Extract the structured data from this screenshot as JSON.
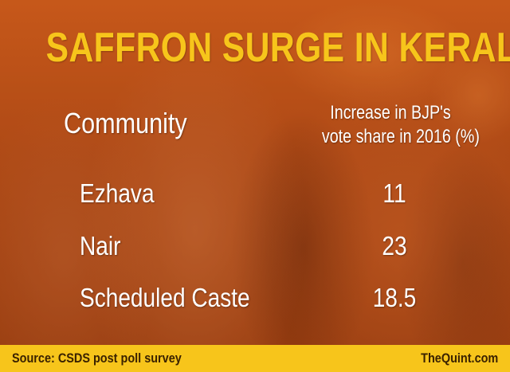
{
  "chart_data": {
    "type": "table",
    "title": "SAFFRON SURGE IN KERALA",
    "columns": [
      "Community",
      "Increase in BJP's",
      "vote share in 2016 (%)"
    ],
    "categories": [
      "Ezhava",
      "Nair",
      "Scheduled Caste"
    ],
    "values": [
      "11",
      "23",
      "18.5"
    ],
    "source": "Source: CSDS post poll survey",
    "brand": "TheQuint.com"
  },
  "colors": {
    "title": "#f7c51b",
    "footer_bg": "#f7c51b",
    "footer_text": "#3a2200",
    "body_text": "#ffffff",
    "background": "#b24a16"
  }
}
